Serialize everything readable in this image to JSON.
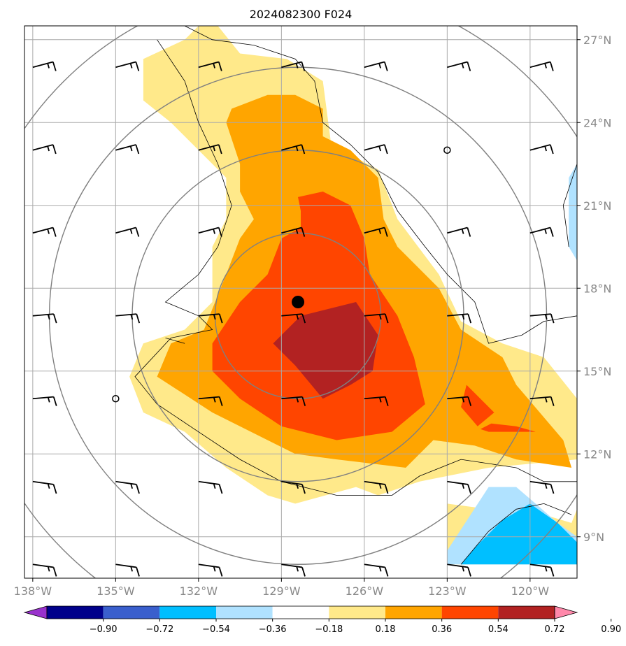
{
  "chart_data": {
    "type": "heatmap",
    "title": "2024082300 F024",
    "map": {
      "lon_range": [
        -138.3,
        -118.3
      ],
      "lat_range": [
        7.5,
        27.5
      ],
      "lon_ticks": [
        -138,
        -135,
        -132,
        -129,
        -126,
        -123,
        -120
      ],
      "lon_tick_labels": [
        "138°W",
        "135°W",
        "132°W",
        "129°W",
        "126°W",
        "123°W",
        "120°W"
      ],
      "lat_ticks": [
        9,
        12,
        15,
        18,
        21,
        24,
        27
      ],
      "lat_tick_labels": [
        "9°N",
        "12°N",
        "15°N",
        "18°N",
        "21°N",
        "24°N",
        "27°N"
      ],
      "grid": true,
      "tick_color": "#888888"
    },
    "storm_center": {
      "lon": -128.4,
      "lat": 17.5
    },
    "range_rings": {
      "center_lon": -128.4,
      "center_lat": 17.0,
      "radii_deg": [
        3,
        6,
        9,
        12
      ]
    },
    "colorbar": {
      "levels": [
        -0.9,
        -0.72,
        -0.54,
        -0.36,
        -0.18,
        0.18,
        0.36,
        0.54,
        0.72,
        0.9
      ],
      "tick_labels": [
        "−0.90",
        "−0.72",
        "−0.54",
        "−0.36",
        "−0.18",
        "0.18",
        "0.36",
        "0.54",
        "0.72",
        "0.90"
      ],
      "colors": [
        "#9932cc",
        "#00008b",
        "#3a5fcd",
        "#00bfff",
        "#b0e2ff",
        "#ffffff",
        "#ffe98a",
        "#ffa500",
        "#ff4500",
        "#b22222",
        "#ff88aa"
      ],
      "extend": "both"
    },
    "filled_regions": [
      {
        "level": 0.18,
        "color": "#ffe98a",
        "polygon": [
          [
            -132,
            27.5
          ],
          [
            -131.3,
            27.5
          ],
          [
            -130.5,
            26.5
          ],
          [
            -128.8,
            26.3
          ],
          [
            -127.5,
            25.5
          ],
          [
            -127.2,
            23.2
          ],
          [
            -125.5,
            22.3
          ],
          [
            -124.8,
            20.5
          ],
          [
            -123.3,
            18.5
          ],
          [
            -122.5,
            16.8
          ],
          [
            -121,
            16
          ],
          [
            -119.5,
            15.5
          ],
          [
            -118.3,
            14
          ],
          [
            -118.3,
            11.8
          ],
          [
            -121.5,
            11.5
          ],
          [
            -124,
            11
          ],
          [
            -125.5,
            10.5
          ],
          [
            -126.3,
            10.8
          ],
          [
            -128.5,
            10.2
          ],
          [
            -129.5,
            10.5
          ],
          [
            -131,
            11.5
          ],
          [
            -132.5,
            12.8
          ],
          [
            -134,
            13.5
          ],
          [
            -134.5,
            14.8
          ],
          [
            -134,
            16
          ],
          [
            -132.5,
            16.5
          ],
          [
            -131.5,
            17.5
          ],
          [
            -131.5,
            19.5
          ],
          [
            -131,
            20.5
          ],
          [
            -131,
            22
          ],
          [
            -132,
            23
          ],
          [
            -133,
            24
          ],
          [
            -134,
            24.8
          ],
          [
            -134,
            26.3
          ],
          [
            -132.5,
            27
          ]
        ]
      },
      {
        "level": 0.18,
        "color": "#ffe98a",
        "polygon": [
          [
            -123,
            10.2
          ],
          [
            -121.5,
            10
          ],
          [
            -119.5,
            9.8
          ],
          [
            -118.5,
            9.5
          ],
          [
            -118.3,
            10
          ],
          [
            -118.3,
            8
          ],
          [
            -123,
            8
          ]
        ]
      },
      {
        "level": 0.36,
        "color": "#ffa500",
        "polygon": [
          [
            -130.8,
            24.5
          ],
          [
            -129.5,
            25
          ],
          [
            -128.5,
            25
          ],
          [
            -127.5,
            24.5
          ],
          [
            -127.5,
            23.5
          ],
          [
            -126.5,
            23
          ],
          [
            -125.5,
            22
          ],
          [
            -125.3,
            20.5
          ],
          [
            -124.8,
            19.5
          ],
          [
            -123.3,
            18
          ],
          [
            -122.5,
            16.5
          ],
          [
            -121,
            15.5
          ],
          [
            -120.5,
            14.5
          ],
          [
            -118.8,
            12.5
          ],
          [
            -118.5,
            11.5
          ],
          [
            -120.5,
            11.8
          ],
          [
            -122,
            12.3
          ],
          [
            -123.5,
            12.5
          ],
          [
            -124.5,
            11.5
          ],
          [
            -127,
            11.8
          ],
          [
            -128.5,
            12
          ],
          [
            -131.5,
            13.5
          ],
          [
            -133.5,
            14.8
          ],
          [
            -133,
            16
          ],
          [
            -131.8,
            16.5
          ],
          [
            -131,
            18.5
          ],
          [
            -130.5,
            19.8
          ],
          [
            -130,
            20.5
          ],
          [
            -130.5,
            21.5
          ],
          [
            -130.5,
            22.5
          ],
          [
            -131,
            24
          ]
        ]
      },
      {
        "level": 0.54,
        "color": "#ff4500",
        "polygon": [
          [
            -128.4,
            21.3
          ],
          [
            -127.5,
            21.5
          ],
          [
            -126.5,
            21
          ],
          [
            -126,
            19.8
          ],
          [
            -125.8,
            18.5
          ],
          [
            -124.8,
            17
          ],
          [
            -124.2,
            15.5
          ],
          [
            -123.8,
            13.8
          ],
          [
            -125,
            12.8
          ],
          [
            -127,
            12.5
          ],
          [
            -129,
            13
          ],
          [
            -130.5,
            14
          ],
          [
            -131.5,
            15
          ],
          [
            -131.5,
            16
          ],
          [
            -130.5,
            17.5
          ],
          [
            -129.5,
            18.5
          ],
          [
            -129,
            19.8
          ],
          [
            -128.3,
            20.2
          ],
          [
            -128.3,
            20.8
          ]
        ]
      },
      {
        "level": 0.54,
        "color": "#ff4500",
        "polygon": [
          [
            -122.3,
            14.5
          ],
          [
            -121.8,
            14
          ],
          [
            -121.3,
            13.5
          ],
          [
            -121.9,
            13
          ],
          [
            -122.5,
            13.7
          ]
        ]
      },
      {
        "level": 0.54,
        "color": "#ff4500",
        "polygon": [
          [
            -121.4,
            13.1
          ],
          [
            -120.5,
            13
          ],
          [
            -119.8,
            12.8
          ],
          [
            -121.5,
            12.8
          ],
          [
            -121.8,
            12.9
          ]
        ]
      },
      {
        "level": 0.72,
        "color": "#b22222",
        "polygon": [
          [
            -126.3,
            17.5
          ],
          [
            -125.5,
            16.3
          ],
          [
            -125.7,
            15
          ],
          [
            -126.5,
            14.5
          ],
          [
            -127.5,
            14
          ],
          [
            -128.5,
            15.2
          ],
          [
            -129.3,
            16
          ],
          [
            -128.3,
            17
          ]
        ]
      },
      {
        "level": -0.18,
        "color": "#b0e2ff",
        "polygon": [
          [
            -118.3,
            22.5
          ],
          [
            -118.6,
            22
          ],
          [
            -118.6,
            19.5
          ],
          [
            -118.3,
            19
          ]
        ]
      },
      {
        "level": -0.18,
        "color": "#b0e2ff",
        "polygon": [
          [
            -121.5,
            10.8
          ],
          [
            -120.5,
            10.8
          ],
          [
            -119.8,
            10.2
          ],
          [
            -119,
            9.5
          ],
          [
            -118.3,
            9
          ],
          [
            -118.3,
            8
          ],
          [
            -123,
            8
          ],
          [
            -123,
            8.5
          ]
        ]
      },
      {
        "level": -0.36,
        "color": "#00bfff",
        "polygon": [
          [
            -120,
            10.2
          ],
          [
            -119,
            9.5
          ],
          [
            -118.3,
            8.8
          ],
          [
            -118.3,
            8
          ],
          [
            -122.5,
            8
          ],
          [
            -122,
            8.6
          ],
          [
            -121,
            9.6
          ]
        ]
      }
    ],
    "contour_lines": [
      [
        [
          -132.5,
          27.5
        ],
        [
          -131.5,
          27
        ],
        [
          -130,
          26.8
        ],
        [
          -128.5,
          26.3
        ],
        [
          -127.8,
          25.5
        ],
        [
          -127.5,
          24
        ],
        [
          -126.5,
          23.2
        ],
        [
          -125.5,
          22.2
        ],
        [
          -124.8,
          20.8
        ],
        [
          -123.8,
          19.5
        ],
        [
          -123,
          18.5
        ],
        [
          -122,
          17.5
        ],
        [
          -121.5,
          16
        ],
        [
          -120.3,
          16.3
        ],
        [
          -119.5,
          16.8
        ],
        [
          -118.3,
          17
        ]
      ],
      [
        [
          -133.5,
          27
        ],
        [
          -132.5,
          25.5
        ],
        [
          -132,
          24
        ],
        [
          -131.3,
          22.5
        ],
        [
          -130.8,
          21
        ],
        [
          -131.3,
          19.5
        ],
        [
          -132,
          18.5
        ],
        [
          -133.2,
          17.5
        ],
        [
          -132,
          17
        ],
        [
          -131.5,
          16.5
        ],
        [
          -133,
          16.2
        ],
        [
          -134.3,
          14.8
        ],
        [
          -133.5,
          13.8
        ],
        [
          -132.3,
          13
        ],
        [
          -130.5,
          11.8
        ],
        [
          -129,
          11
        ],
        [
          -127,
          10.5
        ],
        [
          -125,
          10.5
        ],
        [
          -124,
          11.2
        ],
        [
          -122.5,
          11.8
        ],
        [
          -120.5,
          11.5
        ],
        [
          -119.5,
          11
        ],
        [
          -118.3,
          11
        ]
      ],
      [
        [
          -122.5,
          8
        ],
        [
          -121.5,
          9.2
        ],
        [
          -120.5,
          10
        ],
        [
          -119.5,
          10.2
        ],
        [
          -118.5,
          9.8
        ]
      ],
      [
        [
          -118.3,
          22.5
        ],
        [
          -118.8,
          21
        ],
        [
          -118.6,
          19.5
        ]
      ],
      [
        [
          -133.2,
          16.2
        ],
        [
          -132.5,
          16
        ]
      ]
    ],
    "wind_barbs": {
      "grid_lon": [
        -138,
        -135,
        -132,
        -129,
        -126,
        -123,
        -120
      ],
      "grid_lat": [
        8,
        11,
        14,
        17,
        20,
        23,
        26
      ]
    }
  }
}
